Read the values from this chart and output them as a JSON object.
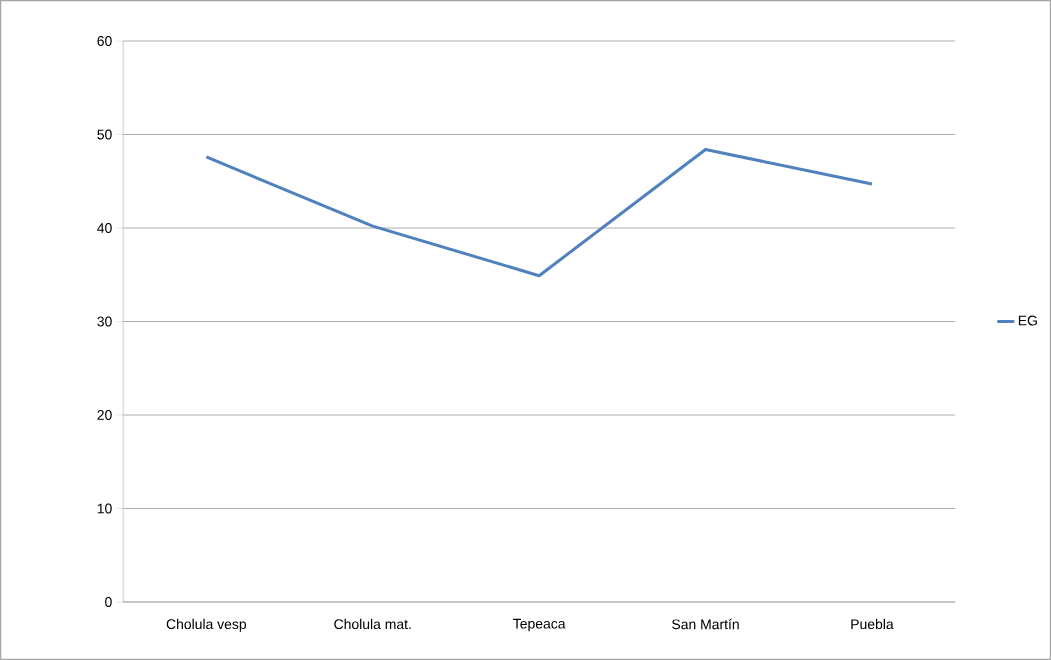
{
  "chart_data": {
    "type": "line",
    "categories": [
      "Cholula vesp",
      "Cholula mat.",
      "Tepeaca",
      "San Martín",
      "Puebla"
    ],
    "series": [
      {
        "name": "EG",
        "color": "#4f81bd",
        "values": [
          47.6,
          40.2,
          34.9,
          48.4,
          44.7
        ]
      }
    ],
    "ylim": [
      0,
      60
    ],
    "yticks": [
      0,
      10,
      20,
      30,
      40,
      50,
      60
    ],
    "grid": "y",
    "legend": "right",
    "marker": "none"
  }
}
